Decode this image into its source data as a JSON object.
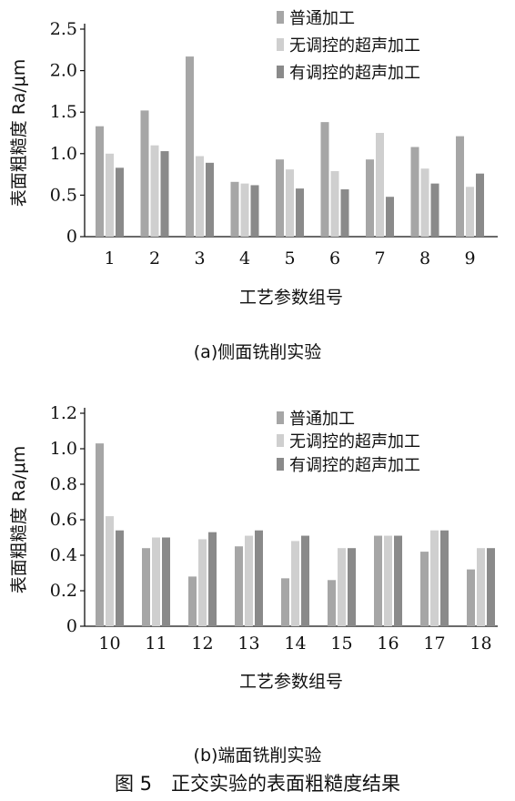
{
  "figure_caption": "图 5　正交实验的表面粗糙度结果",
  "chart_data": [
    {
      "type": "bar",
      "caption": "(a)侧面铣削实验",
      "xlabel": "工艺参数组号",
      "ylabel": "表面粗糙度 Ra/μm",
      "categories": [
        "1",
        "2",
        "3",
        "4",
        "5",
        "6",
        "7",
        "8",
        "9"
      ],
      "ylim": [
        0,
        2.5
      ],
      "yticks": [
        "0",
        "0.5",
        "1.0",
        "1.5",
        "2.0",
        "2.5"
      ],
      "ytick_values": [
        0,
        0.5,
        1.0,
        1.5,
        2.0,
        2.5
      ],
      "legend_position": "top-right",
      "series": [
        {
          "name": "普通加工",
          "color": "#a6a6a6",
          "values": [
            1.33,
            1.52,
            2.17,
            0.66,
            0.93,
            1.38,
            0.93,
            1.08,
            1.21
          ]
        },
        {
          "name": "无调控的超声加工",
          "color": "#cfcfcf",
          "values": [
            1.0,
            1.1,
            0.97,
            0.64,
            0.81,
            0.79,
            1.25,
            0.82,
            0.6
          ]
        },
        {
          "name": "有调控的超声加工",
          "color": "#8a8a8a",
          "values": [
            0.83,
            1.03,
            0.89,
            0.62,
            0.58,
            0.57,
            0.48,
            0.64,
            0.76
          ]
        }
      ]
    },
    {
      "type": "bar",
      "caption": "(b)端面铣削实验",
      "xlabel": "工艺参数组号",
      "ylabel": "表面粗糙度 Ra/μm",
      "categories": [
        "10",
        "11",
        "12",
        "13",
        "14",
        "15",
        "16",
        "17",
        "18"
      ],
      "ylim": [
        0,
        1.2
      ],
      "yticks": [
        "0",
        "0.2",
        "0.4",
        "0.6",
        "0.8",
        "1.0",
        "1.2"
      ],
      "ytick_values": [
        0,
        0.2,
        0.4,
        0.6,
        0.8,
        1.0,
        1.2
      ],
      "legend_position": "top-right",
      "series": [
        {
          "name": "普通加工",
          "color": "#a6a6a6",
          "values": [
            1.03,
            0.44,
            0.28,
            0.45,
            0.27,
            0.26,
            0.51,
            0.42,
            0.32
          ]
        },
        {
          "name": "无调控的超声加工",
          "color": "#cfcfcf",
          "values": [
            0.62,
            0.5,
            0.49,
            0.51,
            0.48,
            0.44,
            0.51,
            0.54,
            0.44
          ]
        },
        {
          "name": "有调控的超声加工",
          "color": "#8a8a8a",
          "values": [
            0.54,
            0.5,
            0.53,
            0.54,
            0.51,
            0.44,
            0.51,
            0.54,
            0.44
          ]
        }
      ]
    }
  ]
}
